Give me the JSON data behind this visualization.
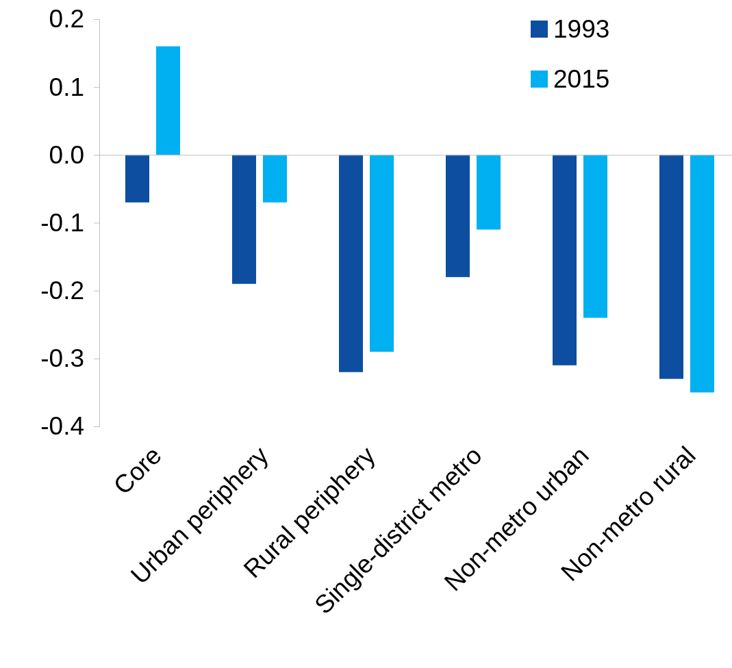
{
  "chart_data": {
    "type": "bar",
    "categories": [
      "Core",
      "Urban periphery",
      "Rural periphery",
      "Single-district metro",
      "Non-metro urban",
      "Non-metro rural"
    ],
    "series": [
      {
        "name": "1993",
        "color": "#0d4ea0",
        "values": [
          -0.07,
          -0.19,
          -0.32,
          -0.18,
          -0.31,
          -0.33
        ]
      },
      {
        "name": "2015",
        "color": "#00b0f0",
        "values": [
          0.16,
          -0.07,
          -0.29,
          -0.11,
          -0.24,
          -0.35
        ]
      }
    ],
    "ylim": [
      -0.4,
      0.2
    ],
    "yticks": [
      -0.4,
      -0.3,
      -0.2,
      -0.1,
      {
        "value": 0,
        "label": "0.0"
      },
      0.1,
      0.2
    ],
    "legend": "top right"
  }
}
